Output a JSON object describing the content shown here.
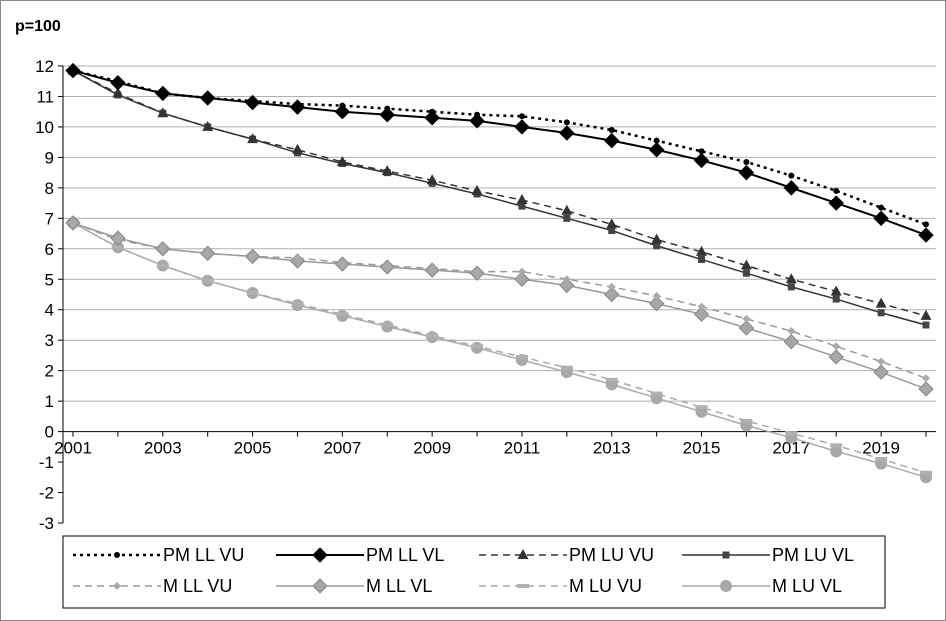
{
  "chart_data": {
    "type": "line",
    "title": "p=100",
    "xlabel": "",
    "ylabel": "",
    "x": [
      2001,
      2002,
      2003,
      2004,
      2005,
      2006,
      2007,
      2008,
      2009,
      2010,
      2011,
      2012,
      2013,
      2014,
      2015,
      2016,
      2017,
      2018,
      2019,
      2020
    ],
    "x_tick_labels": [
      "2001",
      "2003",
      "2005",
      "2007",
      "2009",
      "2011",
      "2013",
      "2015",
      "2017",
      "2019"
    ],
    "x_tick_values": [
      2001,
      2003,
      2005,
      2007,
      2009,
      2011,
      2013,
      2015,
      2017,
      2019
    ],
    "y_tick_values": [
      12,
      11,
      10,
      9,
      8,
      7,
      6,
      5,
      4,
      3,
      2,
      1,
      0,
      -1,
      -2,
      -3
    ],
    "y_tick_labels": [
      "12",
      "11",
      "10",
      "9",
      "8",
      "7",
      "6",
      "5",
      "4",
      "3",
      "2",
      "1",
      "0",
      "-1",
      "-2",
      "-3"
    ],
    "ylim": [
      -3,
      12
    ],
    "xlim": [
      2001,
      2020
    ],
    "grid": "horizontal",
    "legend_position": "bottom",
    "series": [
      {
        "name": "PM LL VU",
        "color": "#000000",
        "dash": "dotted",
        "width": 2.5,
        "marker": "dot",
        "values": [
          11.85,
          11.5,
          11.1,
          10.95,
          10.85,
          10.75,
          10.7,
          10.6,
          10.5,
          10.4,
          10.35,
          10.15,
          9.9,
          9.55,
          9.2,
          8.85,
          8.4,
          7.9,
          7.35,
          6.8
        ]
      },
      {
        "name": "PM LL VL",
        "color": "#000000",
        "dash": "solid",
        "width": 2,
        "marker": "diamond",
        "values": [
          11.85,
          11.45,
          11.1,
          10.95,
          10.8,
          10.65,
          10.5,
          10.4,
          10.3,
          10.2,
          10.0,
          9.8,
          9.55,
          9.25,
          8.9,
          8.5,
          8.0,
          7.5,
          7.0,
          6.45
        ]
      },
      {
        "name": "PM LU VU",
        "color": "#333333",
        "dash": "dashed",
        "width": 1.5,
        "marker": "triangle",
        "values": [
          11.85,
          11.1,
          10.45,
          10.0,
          9.6,
          9.25,
          8.85,
          8.55,
          8.25,
          7.9,
          7.6,
          7.25,
          6.8,
          6.3,
          5.9,
          5.45,
          5.0,
          4.6,
          4.2,
          3.8
        ]
      },
      {
        "name": "PM LU VL",
        "color": "#333333",
        "dash": "solid",
        "width": 1.5,
        "marker": "square",
        "values": [
          11.85,
          11.05,
          10.45,
          10.0,
          9.6,
          9.15,
          8.8,
          8.5,
          8.15,
          7.8,
          7.4,
          7.0,
          6.6,
          6.1,
          5.65,
          5.2,
          4.75,
          4.35,
          3.9,
          3.5
        ]
      },
      {
        "name": "M LL VU",
        "color": "#999999",
        "dash": "dashed",
        "width": 1.5,
        "marker": "smalldiamond",
        "values": [
          6.85,
          6.3,
          6.0,
          5.85,
          5.75,
          5.7,
          5.55,
          5.45,
          5.35,
          5.25,
          5.25,
          5.0,
          4.75,
          4.45,
          4.1,
          3.7,
          3.3,
          2.8,
          2.3,
          1.75
        ]
      },
      {
        "name": "M LL VL",
        "color": "#999999",
        "dash": "solid",
        "width": 1.5,
        "marker": "diamond",
        "values": [
          6.85,
          6.35,
          6.0,
          5.85,
          5.75,
          5.6,
          5.5,
          5.4,
          5.3,
          5.2,
          5.0,
          4.8,
          4.5,
          4.2,
          3.85,
          3.4,
          2.95,
          2.45,
          1.95,
          1.4
        ]
      },
      {
        "name": "M LU VU",
        "color": "#aaaaaa",
        "dash": "dashed",
        "width": 1.5,
        "marker": "dash",
        "values": [
          6.85,
          6.05,
          5.45,
          4.95,
          4.55,
          4.2,
          3.85,
          3.5,
          3.15,
          2.8,
          2.45,
          2.1,
          1.7,
          1.25,
          0.8,
          0.35,
          -0.05,
          -0.45,
          -0.9,
          -1.35
        ]
      },
      {
        "name": "M LU VL",
        "color": "#aaaaaa",
        "dash": "solid",
        "width": 1.5,
        "marker": "circle",
        "values": [
          6.85,
          6.05,
          5.45,
          4.95,
          4.55,
          4.15,
          3.8,
          3.45,
          3.1,
          2.75,
          2.35,
          1.95,
          1.55,
          1.1,
          0.65,
          0.2,
          -0.2,
          -0.65,
          -1.05,
          -1.5
        ]
      }
    ]
  }
}
